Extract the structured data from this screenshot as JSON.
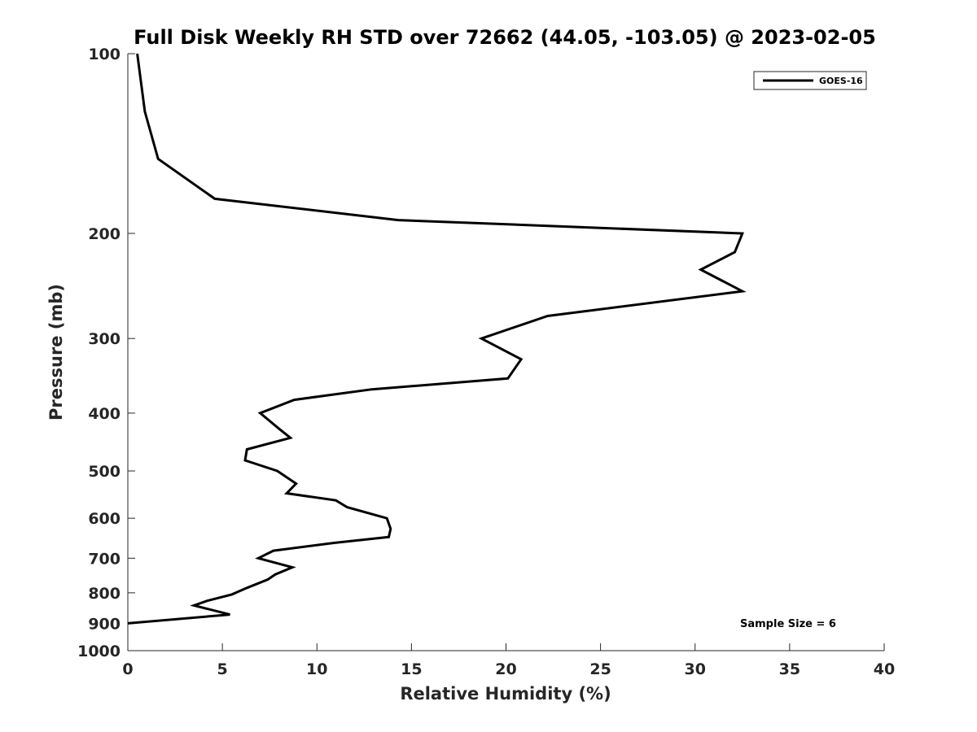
{
  "chart_data": {
    "type": "line",
    "title": "Full Disk Weekly RH STD over 72662 (44.05, -103.05) @ 2023-02-05",
    "xlabel": "Relative Humidity (%)",
    "ylabel": "Pressure (mb)",
    "xlim": [
      0,
      40
    ],
    "ylim": [
      1000,
      100
    ],
    "y_scale": "log",
    "y_reversed": true,
    "x_ticks": [
      0,
      5,
      10,
      15,
      20,
      25,
      30,
      35,
      40
    ],
    "y_ticks": [
      100,
      200,
      300,
      400,
      500,
      600,
      700,
      800,
      900,
      1000
    ],
    "grid": false,
    "legend_position": "top-right",
    "series": [
      {
        "name": "GOES-16",
        "color": "#000000",
        "points": [
          {
            "x": 0.5,
            "y": 100
          },
          {
            "x": 0.9,
            "y": 125
          },
          {
            "x": 1.6,
            "y": 150
          },
          {
            "x": 4.6,
            "y": 175
          },
          {
            "x": 14.3,
            "y": 190
          },
          {
            "x": 32.5,
            "y": 200
          },
          {
            "x": 32.1,
            "y": 215
          },
          {
            "x": 30.3,
            "y": 230
          },
          {
            "x": 32.5,
            "y": 250
          },
          {
            "x": 22.2,
            "y": 275
          },
          {
            "x": 18.7,
            "y": 300
          },
          {
            "x": 20.8,
            "y": 325
          },
          {
            "x": 20.1,
            "y": 350
          },
          {
            "x": 12.9,
            "y": 365
          },
          {
            "x": 8.8,
            "y": 380
          },
          {
            "x": 7.0,
            "y": 400
          },
          {
            "x": 8.0,
            "y": 425
          },
          {
            "x": 8.6,
            "y": 440
          },
          {
            "x": 6.3,
            "y": 460
          },
          {
            "x": 6.2,
            "y": 480
          },
          {
            "x": 7.9,
            "y": 500
          },
          {
            "x": 8.9,
            "y": 525
          },
          {
            "x": 8.4,
            "y": 545
          },
          {
            "x": 11.0,
            "y": 560
          },
          {
            "x": 11.6,
            "y": 575
          },
          {
            "x": 13.7,
            "y": 600
          },
          {
            "x": 13.9,
            "y": 625
          },
          {
            "x": 13.8,
            "y": 645
          },
          {
            "x": 10.9,
            "y": 660
          },
          {
            "x": 7.7,
            "y": 680
          },
          {
            "x": 6.9,
            "y": 700
          },
          {
            "x": 8.7,
            "y": 725
          },
          {
            "x": 7.8,
            "y": 745
          },
          {
            "x": 7.4,
            "y": 760
          },
          {
            "x": 6.3,
            "y": 785
          },
          {
            "x": 5.5,
            "y": 805
          },
          {
            "x": 4.2,
            "y": 825
          },
          {
            "x": 3.5,
            "y": 840
          },
          {
            "x": 5.4,
            "y": 870
          },
          {
            "x": 0.0,
            "y": 900
          }
        ]
      }
    ],
    "annotations": [
      "Sample Size = 6"
    ]
  }
}
